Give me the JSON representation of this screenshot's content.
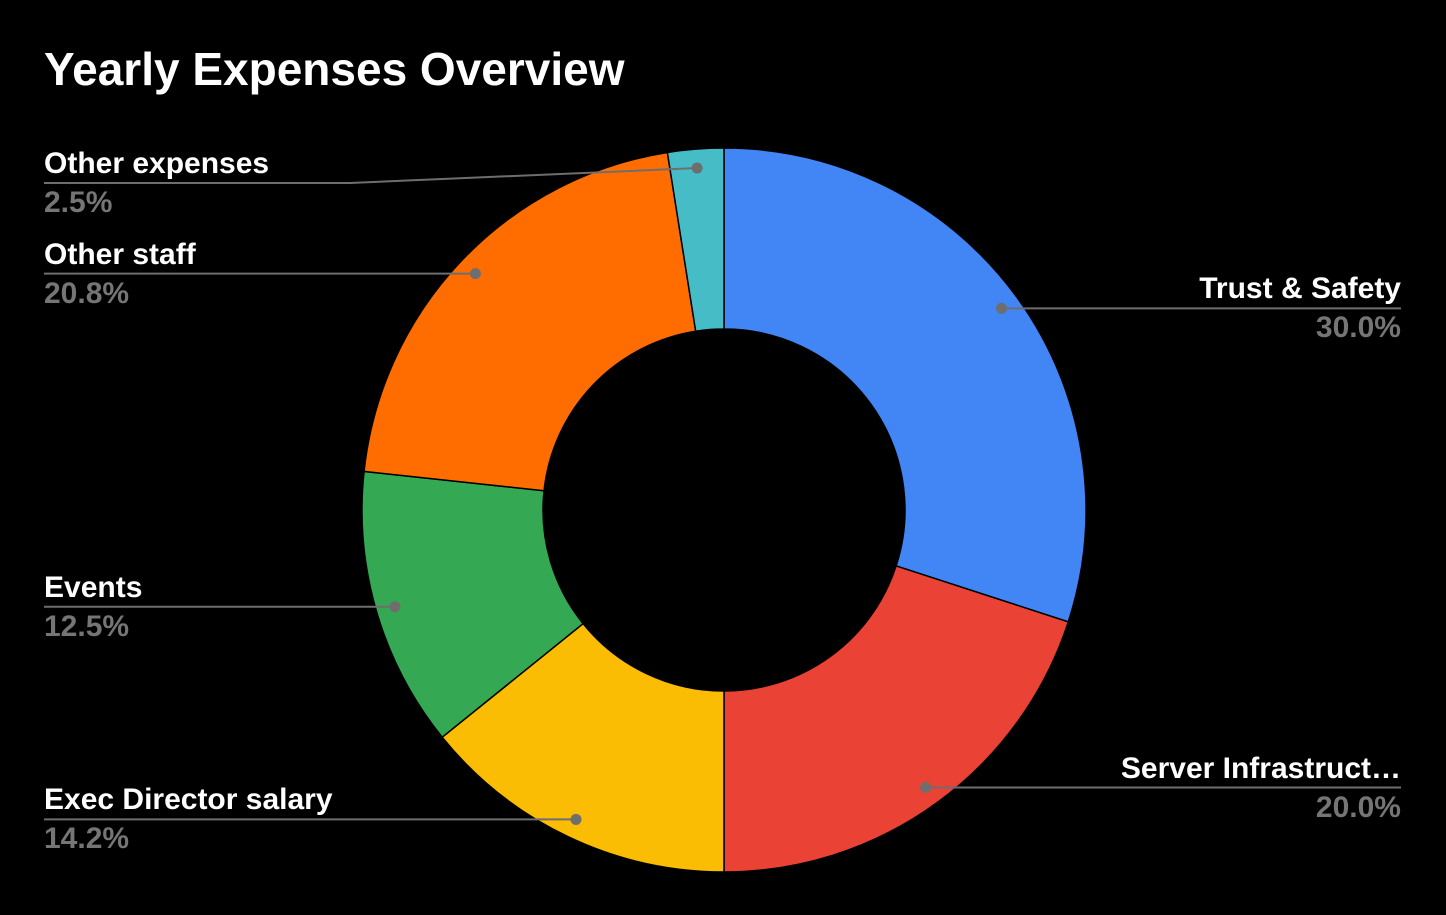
{
  "title": "Yearly Expenses Overview",
  "colors": {
    "background": "#000000",
    "title_text": "#ffffff",
    "label_name_text": "#ffffff",
    "label_value_text": "#757575",
    "leader_line": "#6e6e6e"
  },
  "chart_data": {
    "type": "pie",
    "subtype": "donut",
    "title": "Yearly Expenses Overview",
    "pie_hole": 0.5,
    "start_angle_deg": 0,
    "direction": "clockwise",
    "legend_position": "labeled-callouts",
    "categories": [
      "Trust & Safety",
      "Server Infrastruct…",
      "Exec Director salary",
      "Events",
      "Other staff",
      "Other expenses"
    ],
    "values": [
      30.0,
      20.0,
      14.2,
      12.5,
      20.8,
      2.5
    ],
    "value_labels": [
      "30.0%",
      "20.0%",
      "14.2%",
      "12.5%",
      "20.8%",
      "2.5%"
    ],
    "slice_colors": [
      "#4285F4",
      "#EA4335",
      "#FBBC04",
      "#34A853",
      "#FF6D01",
      "#46BDC6"
    ]
  }
}
